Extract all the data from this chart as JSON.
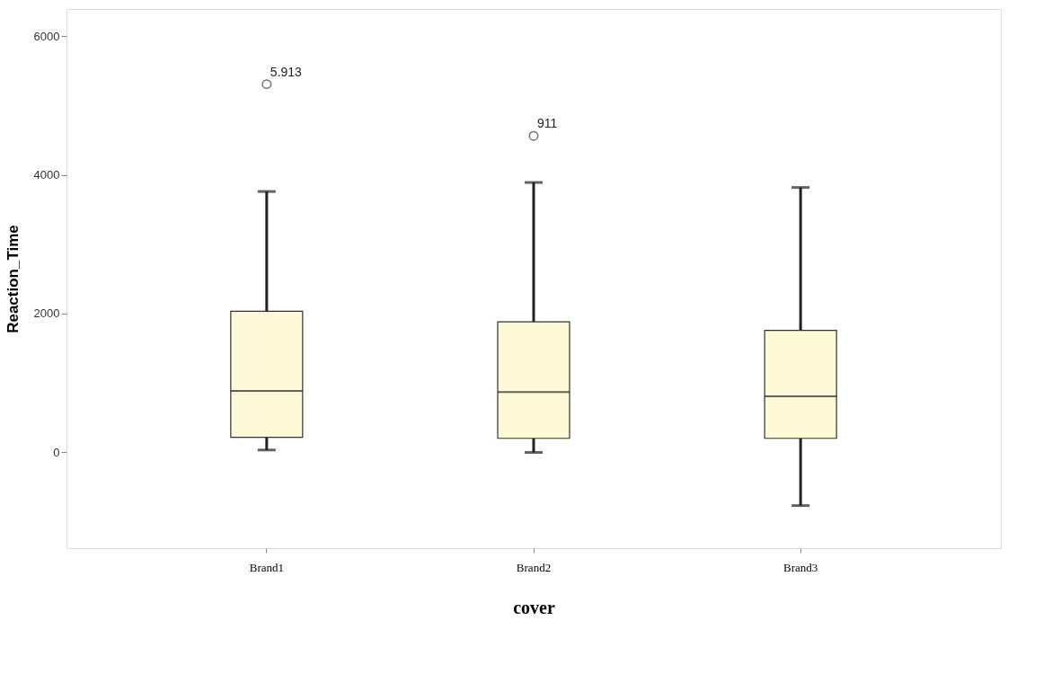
{
  "chart_data": {
    "type": "box",
    "xlabel": "cover",
    "ylabel": "Reaction_Time",
    "categories": [
      "Brand1",
      "Brand2",
      "Brand3"
    ],
    "series": [
      {
        "color": "#fef9d6",
        "boxes": [
          {
            "low": 35,
            "q1": 218,
            "median": 886,
            "q3": 2033,
            "high": 3760,
            "outliers": [
              5307
            ]
          },
          {
            "low": 0,
            "q1": 203,
            "median": 871,
            "q3": 1881,
            "high": 3890,
            "outliers": [
              4562
            ]
          },
          {
            "low": -766,
            "q1": 203,
            "median": 810,
            "q3": 1759,
            "high": 3818
          }
        ]
      }
    ],
    "ylim": [
      -1380,
      6390
    ],
    "yticks": [
      0,
      2000,
      4000,
      6000
    ],
    "grid": false,
    "annotations": [
      "5.913",
      "911"
    ]
  }
}
